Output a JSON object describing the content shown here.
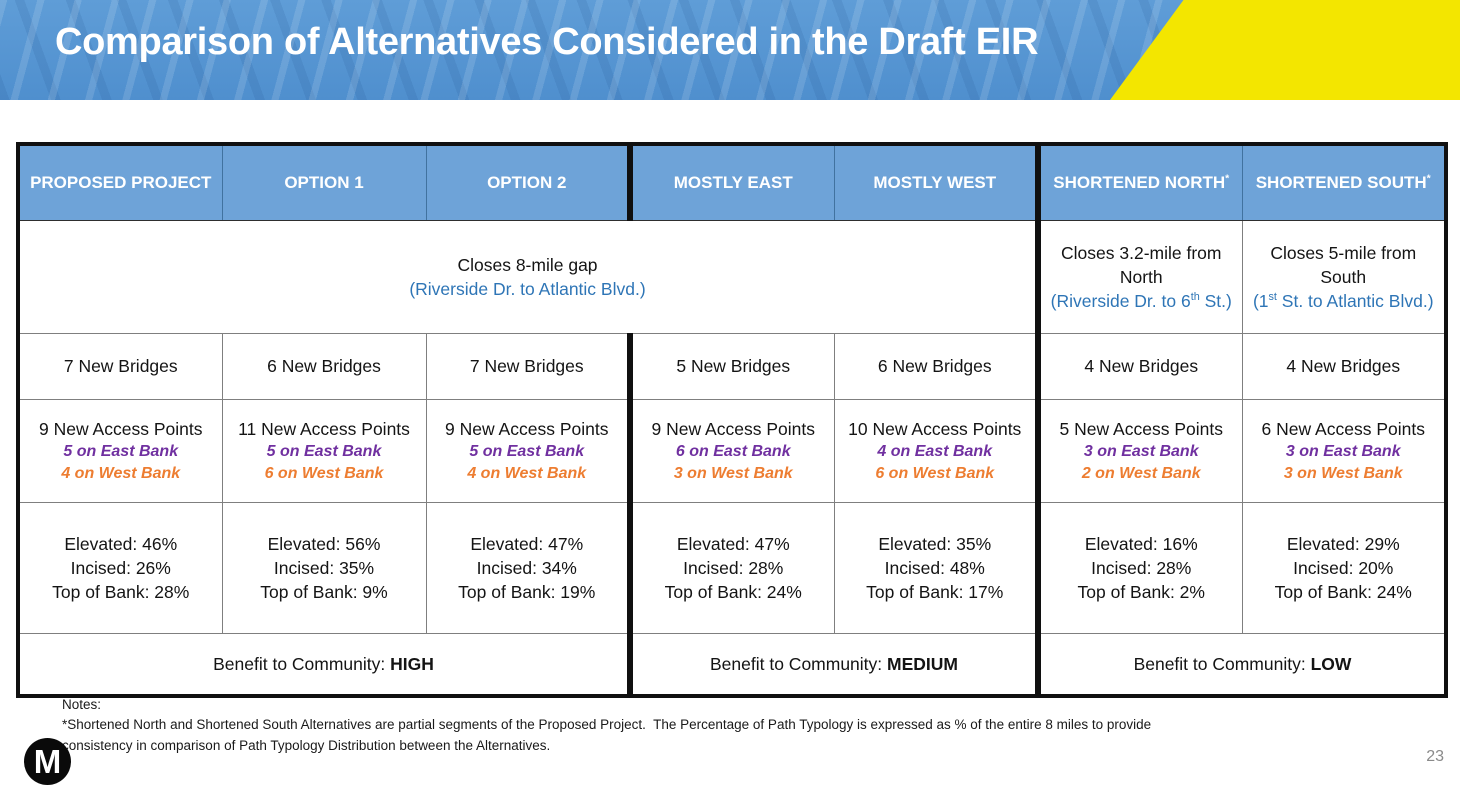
{
  "title": "Comparison of Alternatives Considered in the Draft EIR",
  "page_number": "23",
  "logo_letter": "M",
  "colors": {
    "banner_blue": "#5694D3",
    "banner_yellow": "#F3E600",
    "header_cell_blue": "#6EA3D8",
    "location_blue": "#2E75B6",
    "east_bank_purple": "#7030A0",
    "west_bank_orange": "#ED7D31"
  },
  "table": {
    "headers": [
      {
        "label": "PROPOSED PROJECT",
        "sup": ""
      },
      {
        "label": "OPTION 1",
        "sup": ""
      },
      {
        "label": "OPTION 2",
        "sup": ""
      },
      {
        "label": "MOSTLY EAST",
        "sup": ""
      },
      {
        "label": "MOSTLY WEST",
        "sup": ""
      },
      {
        "label": "SHORTENED NORTH",
        "sup": "*"
      },
      {
        "label": "SHORTENED SOUTH",
        "sup": "*"
      }
    ],
    "gap": {
      "main": {
        "text": "Closes 8-mile gap",
        "subtext": "(Riverside Dr. to Atlantic Blvd.)"
      },
      "north": {
        "text": "Closes 3.2-mile from North",
        "sub": [
          "(Riverside Dr. to 6",
          "th",
          " St.)"
        ]
      },
      "south": {
        "text": "Closes 5-mile from South",
        "sub": [
          "(1",
          "st",
          " St. to Atlantic Blvd.)"
        ]
      }
    },
    "bridges": [
      "7 New Bridges",
      "6 New Bridges",
      "7 New Bridges",
      "5 New Bridges",
      "6 New Bridges",
      "4 New Bridges",
      "4 New Bridges"
    ],
    "access": [
      {
        "total": "9 New Access Points",
        "east": "5 on East Bank",
        "west": "4 on West Bank"
      },
      {
        "total": "11 New Access Points",
        "east": "5 on East Bank",
        "west": "6 on West Bank"
      },
      {
        "total": "9 New Access Points",
        "east": "5 on East Bank",
        "west": "4 on West Bank"
      },
      {
        "total": "9 New Access Points",
        "east": "6 on East Bank",
        "west": "3 on West Bank"
      },
      {
        "total": "10 New Access Points",
        "east": "4 on East Bank",
        "west": "6 on West Bank"
      },
      {
        "total": "5 New Access Points",
        "east": "3 on East Bank",
        "west": "2 on West Bank"
      },
      {
        "total": "6 New Access Points",
        "east": "3 on East Bank",
        "west": "3 on West Bank"
      }
    ],
    "typology": [
      [
        "Elevated: 46%",
        "Incised: 26%",
        "Top of Bank: 28%"
      ],
      [
        "Elevated: 56%",
        "Incised: 35%",
        "Top of Bank: 9%"
      ],
      [
        "Elevated: 47%",
        "Incised: 34%",
        "Top of Bank: 19%"
      ],
      [
        "Elevated: 47%",
        "Incised: 28%",
        "Top of Bank: 24%"
      ],
      [
        "Elevated: 35%",
        "Incised: 48%",
        "Top of Bank: 17%"
      ],
      [
        "Elevated: 16%",
        "Incised: 28%",
        "Top of Bank: 2%"
      ],
      [
        "Elevated: 29%",
        "Incised: 20%",
        "Top of Bank: 24%"
      ]
    ],
    "benefit": [
      {
        "label": "Benefit to Community: ",
        "level": "HIGH"
      },
      {
        "label": "Benefit to Community: ",
        "level": "MEDIUM"
      },
      {
        "label": "Benefit to Community: ",
        "level": "LOW"
      }
    ]
  },
  "notes": {
    "heading": "Notes:",
    "line1": "*Shortened North and Shortened South Alternatives are partial segments of the Proposed Project.  The Percentage of Path Typology is expressed as % of the entire 8 miles to provide",
    "line2": "consistency in comparison of Path Typology Distribution between the Alternatives."
  }
}
